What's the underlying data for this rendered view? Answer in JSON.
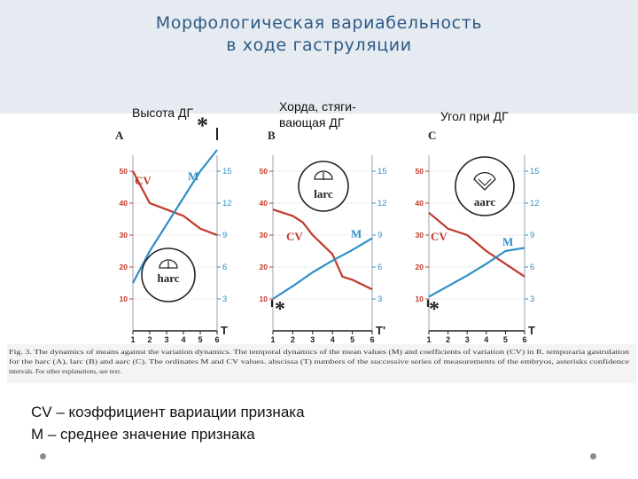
{
  "title": {
    "line1": "Морфологическая вариабельность",
    "line2": "в ходе гаструляции"
  },
  "columns": [
    "Высота ДГ",
    "Хорда, стяги-",
    "вающая ДГ",
    "Угол при ДГ"
  ],
  "legend": {
    "cv": "CV – коэффициент вариации признака",
    "m": "M – среднее значение признака"
  },
  "colors": {
    "cv": "#c0392b",
    "m": "#2f8fc7",
    "axis": "#222222",
    "title": "#2e5a86"
  },
  "chart_data": [
    {
      "type": "line",
      "panel": "A",
      "inset_label": "harc",
      "asterisk": "*",
      "x": [
        1,
        2,
        3,
        4,
        5,
        6
      ],
      "xlabel": "T",
      "left_ticks": [
        10,
        20,
        30,
        40,
        50
      ],
      "right_ticks": [
        3,
        6,
        9,
        12,
        15
      ],
      "ylim_left": [
        0,
        55
      ],
      "ylim_right": [
        0,
        16.5
      ],
      "series": [
        {
          "name": "CV",
          "axis": "left",
          "x": [
            1,
            1.6,
            2,
            3,
            4,
            5,
            6
          ],
          "values": [
            50,
            44,
            40,
            38,
            36,
            32,
            30
          ]
        },
        {
          "name": "M",
          "axis": "right",
          "x": [
            1,
            2,
            3,
            4,
            5,
            6
          ],
          "values": [
            4.5,
            7.5,
            10,
            12.5,
            15,
            17
          ]
        }
      ]
    },
    {
      "type": "line",
      "panel": "B",
      "inset_label": "larc",
      "asterisk": "*",
      "x": [
        1,
        2,
        3,
        4,
        5,
        6
      ],
      "xlabel": "T'",
      "left_ticks": [
        10,
        20,
        30,
        40,
        50
      ],
      "right_ticks": [
        3,
        6,
        9,
        12,
        15
      ],
      "ylim_left": [
        0,
        55
      ],
      "ylim_right": [
        0,
        16.5
      ],
      "series": [
        {
          "name": "CV",
          "axis": "left",
          "x": [
            1,
            2,
            2.5,
            3,
            4,
            4.5,
            5,
            6
          ],
          "values": [
            38,
            36,
            34,
            30,
            24,
            17,
            16,
            13
          ]
        },
        {
          "name": "M",
          "axis": "right",
          "x": [
            1,
            2,
            3,
            4,
            5,
            6
          ],
          "values": [
            3,
            4.2,
            5.5,
            6.6,
            7.6,
            8.7
          ]
        }
      ]
    },
    {
      "type": "line",
      "panel": "C",
      "inset_label": "aarc",
      "asterisk": "*",
      "x": [
        1,
        2,
        3,
        4,
        5,
        6
      ],
      "xlabel": "T",
      "left_ticks": [
        10,
        20,
        30,
        40,
        50
      ],
      "right_ticks": [
        3,
        6,
        9,
        12,
        15
      ],
      "ylim_left": [
        0,
        55
      ],
      "ylim_right": [
        0,
        16.5
      ],
      "series": [
        {
          "name": "CV",
          "axis": "left",
          "x": [
            1,
            2,
            3,
            4,
            5,
            6
          ],
          "values": [
            37,
            32,
            30,
            25,
            21,
            17
          ]
        },
        {
          "name": "M",
          "axis": "right",
          "x": [
            1,
            2,
            3,
            4,
            5,
            6
          ],
          "values": [
            3.2,
            4.2,
            5.2,
            6.3,
            7.5,
            7.8
          ]
        }
      ]
    }
  ],
  "caption": {
    "line1": "Fig. 3.  The dynamics of means against the variation dynamics. The temporal dynamics of the mean values (M) and coefficients of variation (CV) in R. temporaria gastrulation",
    "line2": "for the harc (A), larc (B) and aarc (C). The ordinates     M and CV values. abscissa (T)     numbers of the successive series of measurements of the embryos, asterisks     confidence",
    "line3": "intervals. For other explanations, see text."
  }
}
